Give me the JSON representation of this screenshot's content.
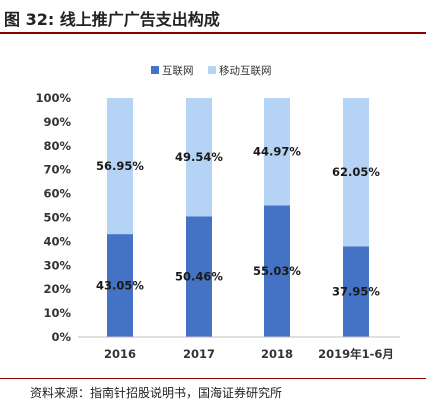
{
  "figure": {
    "title": "图 32:  线上推广广告支出构成",
    "source": "资料来源：指南针招股说明书，国海证券研究所"
  },
  "chart_data": {
    "type": "bar",
    "stacked": true,
    "title": "",
    "xlabel": "",
    "ylabel": "",
    "categories": [
      "2016",
      "2017",
      "2018",
      "2019年1-6月"
    ],
    "series": [
      {
        "name": "互联网",
        "values": [
          43.05,
          50.46,
          55.03,
          37.95
        ],
        "labels": [
          "43.05%",
          "50.46%",
          "55.03%",
          "37.95%"
        ],
        "color": "#4472c4"
      },
      {
        "name": "移动互联网",
        "values": [
          56.95,
          49.54,
          44.97,
          62.05
        ],
        "labels": [
          "56.95%",
          "49.54%",
          "44.97%",
          "62.05%"
        ],
        "color": "#b4d3f5"
      }
    ],
    "ylim": [
      0,
      100
    ],
    "yticks": [
      "0%",
      "10%",
      "20%",
      "30%",
      "40%",
      "50%",
      "60%",
      "70%",
      "80%",
      "90%",
      "100%"
    ],
    "legend_position": "top-center",
    "grid": false
  }
}
